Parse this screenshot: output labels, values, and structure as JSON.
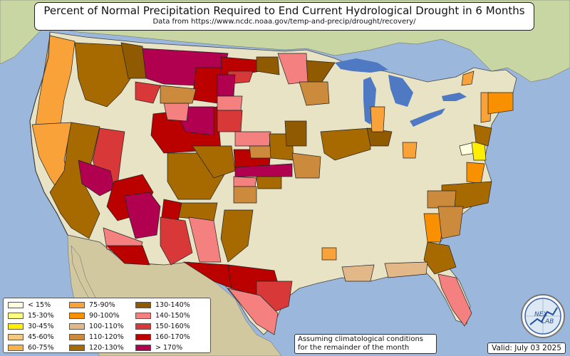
{
  "title": "Percent of Normal Precipitation Required to End Current Hydrological Drought in 6 Months",
  "subtitle": "Data from https://www.ncdc.noaa.gov/temp-and-precip/drought/recovery/",
  "note": {
    "line1": "Assuming climatological conditions",
    "line2": "for the remainder of the month"
  },
  "valid": "Valid: July 03 2025",
  "logo": {
    "text_top": "NEX",
    "text_bottom": "LAB"
  },
  "legend": [
    {
      "label": "< 15%",
      "color": "#ffffe0"
    },
    {
      "label": "15-30%",
      "color": "#ffff80"
    },
    {
      "label": "30-45%",
      "color": "#ffee00"
    },
    {
      "label": "45-60%",
      "color": "#f5c880"
    },
    {
      "label": "60-75%",
      "color": "#f8b24a"
    },
    {
      "label": "75-90%",
      "color": "#f9a23a"
    },
    {
      "label": "90-100%",
      "color": "#f99000"
    },
    {
      "label": "100-110%",
      "color": "#e3b889"
    },
    {
      "label": "110-120%",
      "color": "#cc8a3c"
    },
    {
      "label": "120-130%",
      "color": "#a66a00"
    },
    {
      "label": "130-140%",
      "color": "#8f5a00"
    },
    {
      "label": "140-150%",
      "color": "#f48080"
    },
    {
      "label": "150-160%",
      "color": "#d93838"
    },
    {
      "label": "160-170%",
      "color": "#bb0000"
    },
    {
      "label": "> 170%",
      "color": "#b0004f"
    }
  ],
  "colors": {
    "ocean": "#9bb8dc",
    "land": "#e7e3c4",
    "canada": "#c8d6a4",
    "mexico": "#d2c8a0",
    "lakes": "#4f79c2"
  }
}
